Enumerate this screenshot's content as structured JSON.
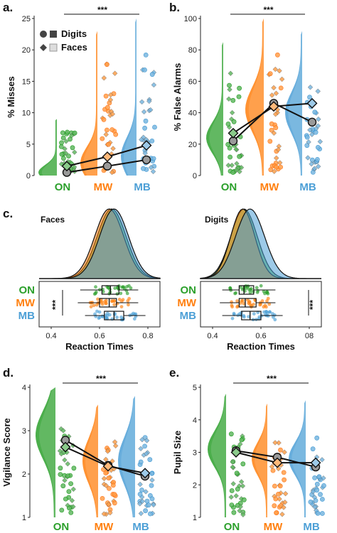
{
  "colors": {
    "ON": "#2ca02c",
    "MW": "#ff7f0e",
    "MB": "#4c9fd6",
    "axis": "#222222",
    "line": "#111111"
  },
  "legend": {
    "digits": "Digits",
    "faces": "Faces"
  },
  "chart_data": [
    {
      "id": "a",
      "panel_label": "a.",
      "type": "scatter",
      "ylabel": "% Misses",
      "ylim": [
        0,
        25
      ],
      "yticks": [
        0,
        5,
        10,
        15,
        20,
        25
      ],
      "categories": [
        "ON",
        "MW",
        "MB"
      ],
      "significance": "***",
      "series": [
        {
          "name": "Digits",
          "marker": "circle",
          "values": [
            0.5,
            1.5,
            2.5
          ]
        },
        {
          "name": "Faces",
          "marker": "diamond",
          "values": [
            1.5,
            3,
            4.8
          ]
        }
      ]
    },
    {
      "id": "b",
      "panel_label": "b.",
      "type": "scatter",
      "ylabel": "% False Alarms",
      "ylim": [
        0,
        100
      ],
      "yticks": [
        0,
        20,
        40,
        60,
        80,
        100
      ],
      "categories": [
        "ON",
        "MW",
        "MB"
      ],
      "significance": "***",
      "series": [
        {
          "name": "Digits",
          "marker": "circle",
          "values": [
            22,
            46,
            34
          ]
        },
        {
          "name": "Faces",
          "marker": "diamond",
          "values": [
            27,
            44,
            46
          ]
        }
      ]
    },
    {
      "id": "c1",
      "panel_label": "c.",
      "type": "area",
      "subtitle": "Faces",
      "xlabel": "Reaction Times",
      "xlim": [
        0.35,
        0.85
      ],
      "xticks": [
        "0.4",
        "0.6",
        "0.8"
      ],
      "categories": [
        "ON",
        "MW",
        "MB"
      ],
      "significance": "***",
      "box_stats": [
        {
          "name": "ON",
          "min": 0.52,
          "q1": 0.61,
          "median": 0.645,
          "q3": 0.68,
          "max": 0.76
        },
        {
          "name": "MW",
          "min": 0.51,
          "q1": 0.6,
          "median": 0.64,
          "q3": 0.67,
          "max": 0.76
        },
        {
          "name": "MB",
          "min": 0.54,
          "q1": 0.62,
          "median": 0.66,
          "q3": 0.7,
          "max": 0.79
        }
      ]
    },
    {
      "id": "c2",
      "panel_label": "",
      "type": "area",
      "subtitle": "Digits",
      "xlabel": "Reaction Times",
      "xlim": [
        0.35,
        0.85
      ],
      "xticks": [
        "0.4",
        "0.6",
        "08"
      ],
      "categories": [
        "ON",
        "MW",
        "MB"
      ],
      "significance": "***",
      "box_stats": [
        {
          "name": "ON",
          "min": 0.44,
          "q1": 0.51,
          "median": 0.53,
          "q3": 0.57,
          "max": 0.66
        },
        {
          "name": "MW",
          "min": 0.43,
          "q1": 0.51,
          "median": 0.535,
          "q3": 0.58,
          "max": 0.66
        },
        {
          "name": "MB",
          "min": 0.44,
          "q1": 0.52,
          "median": 0.555,
          "q3": 0.6,
          "max": 0.69
        }
      ]
    },
    {
      "id": "d",
      "panel_label": "d.",
      "type": "scatter",
      "ylabel": "Vigilance Score",
      "ylim": [
        1,
        4
      ],
      "yticks": [
        1,
        2,
        3,
        4
      ],
      "categories": [
        "ON",
        "MW",
        "MB"
      ],
      "significance": "***",
      "series": [
        {
          "name": "Digits",
          "marker": "circle",
          "values": [
            2.78,
            2.2,
            1.95
          ]
        },
        {
          "name": "Faces",
          "marker": "diamond",
          "values": [
            2.62,
            2.18,
            2.02
          ]
        }
      ]
    },
    {
      "id": "e",
      "panel_label": "e.",
      "type": "scatter",
      "ylabel": "Pupil Size",
      "ylim": [
        1,
        5
      ],
      "yticks": [
        1,
        2,
        3,
        4,
        5
      ],
      "categories": [
        "ON",
        "MW",
        "MB"
      ],
      "significance": "***",
      "series": [
        {
          "name": "Digits",
          "marker": "circle",
          "values": [
            3.05,
            2.85,
            2.55
          ]
        },
        {
          "name": "Faces",
          "marker": "diamond",
          "values": [
            3.0,
            2.68,
            2.68
          ]
        }
      ]
    }
  ]
}
